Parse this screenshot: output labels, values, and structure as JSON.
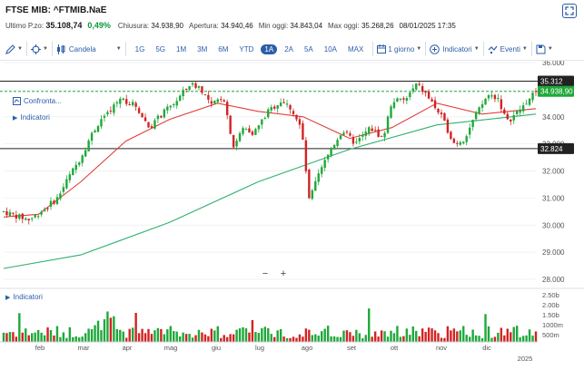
{
  "header": {
    "title": "FTSE MIB: ^FTMIB.NaE"
  },
  "stats": {
    "last_label": "Ultimo P.zo:",
    "last_value": "35.108,74",
    "change": "0,49%",
    "close_label": "Chiusura:",
    "close_value": "34.938,90",
    "open_label": "Apertura:",
    "open_value": "34.940,46",
    "low_label": "Min oggi:",
    "low_value": "34.843,04",
    "high_label": "Max oggi:",
    "high_value": "35.268,26",
    "timestamp": "08/01/2025 17:35"
  },
  "toolbar": {
    "chart_type": "Candela",
    "ranges": [
      "1G",
      "5G",
      "1M",
      "3M",
      "6M",
      "YTD",
      "1A",
      "2A",
      "5A",
      "10A",
      "MAX"
    ],
    "active_range": "1A",
    "interval": "1 giorno",
    "indicators": "Indicatori",
    "events": "Eventi"
  },
  "overlays": {
    "compare": "Confronta...",
    "indicators_top": "Indicatori",
    "indicators_bottom": "Indicatori"
  },
  "colors": {
    "up": "#1fa83a",
    "down": "#d32222",
    "ma_fast": "#e0403a",
    "ma_slow": "#2fb06e",
    "accent": "#2c5ea8"
  },
  "chart_data": {
    "type": "candlestick",
    "y_axis": {
      "min": 28000,
      "max": 36000,
      "ticks": [
        "36.000",
        "35.000",
        "34.000",
        "33.000",
        "32.000",
        "31.000",
        "30.000",
        "29.000",
        "28.000"
      ]
    },
    "x_labels": [
      "feb",
      "mar",
      "apr",
      "mag",
      "giu",
      "lug",
      "ago",
      "set",
      "ott",
      "nov",
      "dic",
      "2025"
    ],
    "volume_ticks": [
      "2.50b",
      "2.00b",
      "1.50b",
      "1000m",
      "500m"
    ],
    "levels": [
      {
        "label": "35.312",
        "value": 35312
      },
      {
        "label": "34.938,90",
        "value": 34938.9
      },
      {
        "label": "32.824",
        "value": 32824
      }
    ],
    "close_path": [
      {
        "date": "2024-01-08",
        "close": 30500
      },
      {
        "date": "2024-01-19",
        "close": 30300
      },
      {
        "date": "2024-01-26",
        "close": 30200
      },
      {
        "date": "2024-02-05",
        "close": 30600
      },
      {
        "date": "2024-02-14",
        "close": 31000
      },
      {
        "date": "2024-02-21",
        "close": 31700
      },
      {
        "date": "2024-03-01",
        "close": 32500
      },
      {
        "date": "2024-03-08",
        "close": 33300
      },
      {
        "date": "2024-03-15",
        "close": 33900
      },
      {
        "date": "2024-03-22",
        "close": 34200
      },
      {
        "date": "2024-03-28",
        "close": 34700
      },
      {
        "date": "2024-04-08",
        "close": 34400
      },
      {
        "date": "2024-04-17",
        "close": 33600
      },
      {
        "date": "2024-04-26",
        "close": 34100
      },
      {
        "date": "2024-05-06",
        "close": 34600
      },
      {
        "date": "2024-05-15",
        "close": 35200
      },
      {
        "date": "2024-05-22",
        "close": 35100
      },
      {
        "date": "2024-05-30",
        "close": 34400
      },
      {
        "date": "2024-06-07",
        "close": 34800
      },
      {
        "date": "2024-06-14",
        "close": 32900
      },
      {
        "date": "2024-06-21",
        "close": 33600
      },
      {
        "date": "2024-06-28",
        "close": 33400
      },
      {
        "date": "2024-07-08",
        "close": 34200
      },
      {
        "date": "2024-07-17",
        "close": 34600
      },
      {
        "date": "2024-07-24",
        "close": 34300
      },
      {
        "date": "2024-07-31",
        "close": 33500
      },
      {
        "date": "2024-08-05",
        "close": 30900
      },
      {
        "date": "2024-08-12",
        "close": 31900
      },
      {
        "date": "2024-08-20",
        "close": 32800
      },
      {
        "date": "2024-08-28",
        "close": 33500
      },
      {
        "date": "2024-09-06",
        "close": 33000
      },
      {
        "date": "2024-09-16",
        "close": 33600
      },
      {
        "date": "2024-09-25",
        "close": 33200
      },
      {
        "date": "2024-10-01",
        "close": 34600
      },
      {
        "date": "2024-10-10",
        "close": 34600
      },
      {
        "date": "2024-10-18",
        "close": 35200
      },
      {
        "date": "2024-10-25",
        "close": 34800
      },
      {
        "date": "2024-11-04",
        "close": 34000
      },
      {
        "date": "2024-11-13",
        "close": 33000
      },
      {
        "date": "2024-11-20",
        "close": 33200
      },
      {
        "date": "2024-11-27",
        "close": 34000
      },
      {
        "date": "2024-12-06",
        "close": 34800
      },
      {
        "date": "2024-12-13",
        "close": 34700
      },
      {
        "date": "2024-12-19",
        "close": 33800
      },
      {
        "date": "2024-12-27",
        "close": 34200
      },
      {
        "date": "2025-01-08",
        "close": 34939
      }
    ],
    "ma_fast": [
      {
        "date": "2024-01-08",
        "value": 30300
      },
      {
        "date": "2024-02-01",
        "value": 30400
      },
      {
        "date": "2024-03-01",
        "value": 31600
      },
      {
        "date": "2024-04-01",
        "value": 33100
      },
      {
        "date": "2024-05-01",
        "value": 33900
      },
      {
        "date": "2024-06-03",
        "value": 34500
      },
      {
        "date": "2024-07-01",
        "value": 34200
      },
      {
        "date": "2024-08-01",
        "value": 34000
      },
      {
        "date": "2024-09-02",
        "value": 33200
      },
      {
        "date": "2024-10-01",
        "value": 33600
      },
      {
        "date": "2024-11-01",
        "value": 34500
      },
      {
        "date": "2024-12-02",
        "value": 34100
      },
      {
        "date": "2025-01-08",
        "value": 34300
      }
    ],
    "ma_slow": [
      {
        "date": "2024-01-08",
        "value": 28400
      },
      {
        "date": "2024-03-01",
        "value": 28900
      },
      {
        "date": "2024-05-01",
        "value": 30100
      },
      {
        "date": "2024-07-01",
        "value": 31600
      },
      {
        "date": "2024-09-02",
        "value": 32800
      },
      {
        "date": "2024-11-01",
        "value": 33700
      },
      {
        "date": "2025-01-08",
        "value": 34100
      }
    ]
  }
}
